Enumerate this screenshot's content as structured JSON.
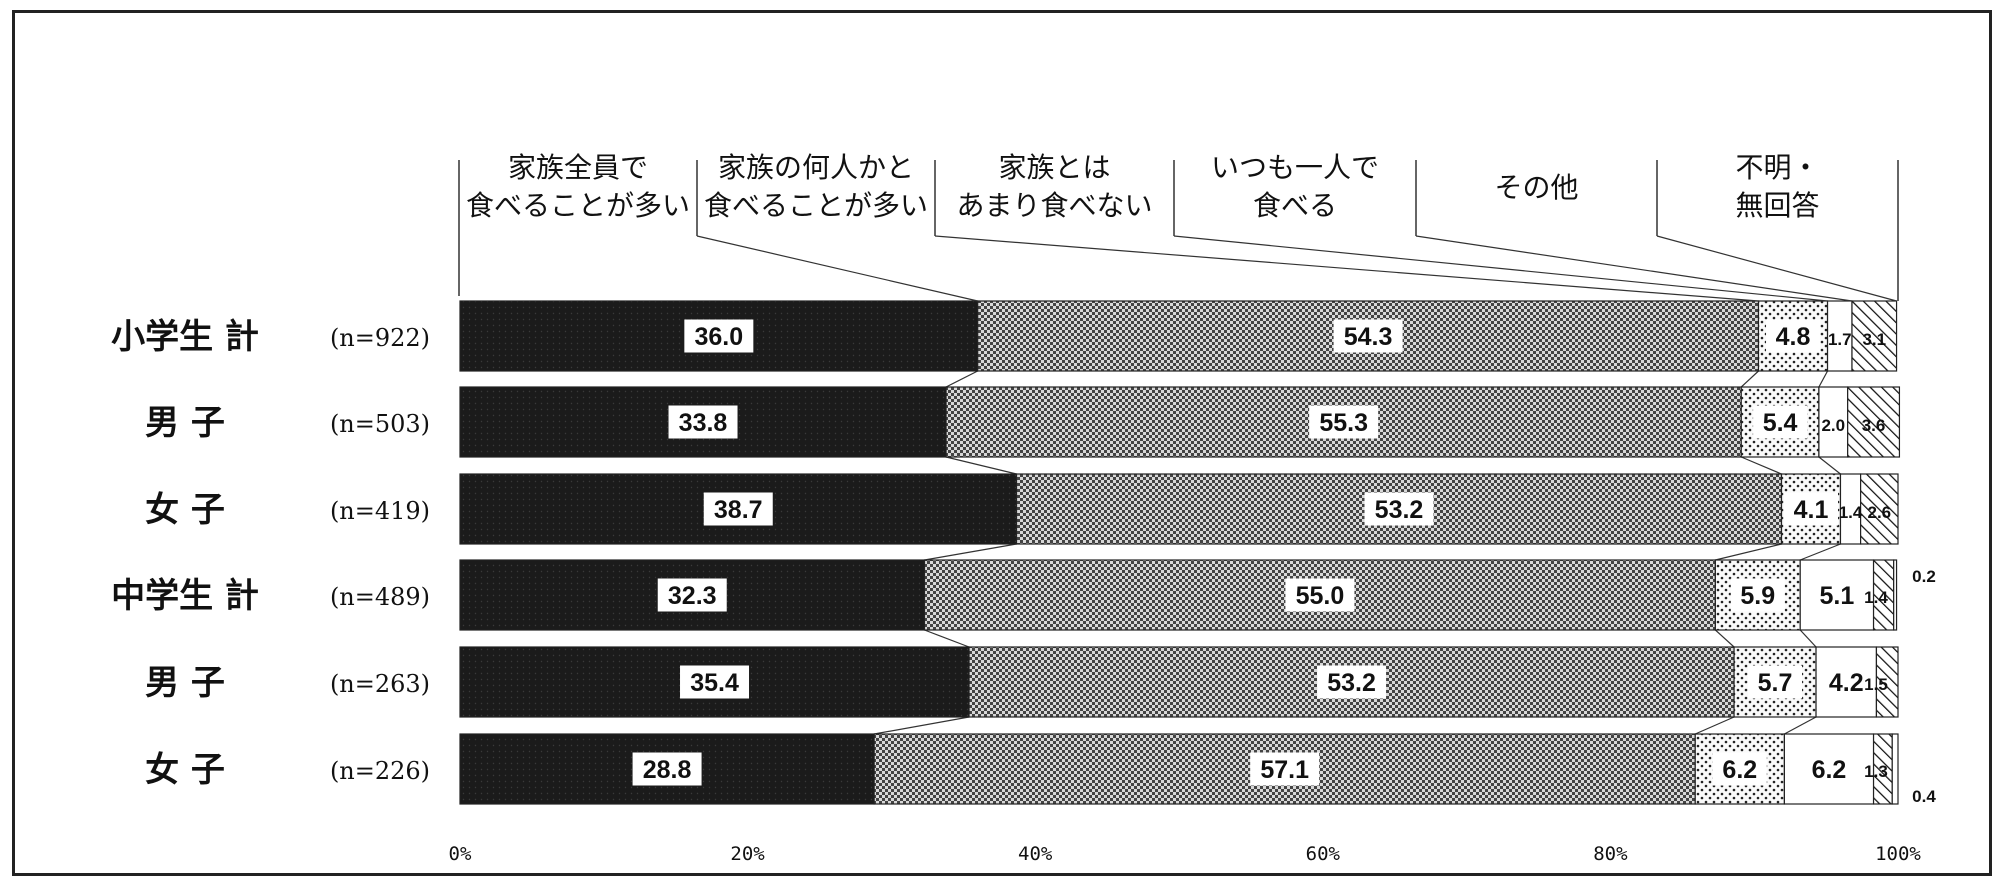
{
  "chart_data": {
    "type": "bar",
    "stacked": true,
    "orientation": "horizontal",
    "percent": true,
    "categories": [
      "小学生 計",
      "男 子",
      "女 子",
      "中学生 計",
      "男 子",
      "女 子"
    ],
    "n_labels": [
      "(n=922)",
      "(n=503)",
      "(n=419)",
      "(n=489)",
      "(n=263)",
      "(n=226)"
    ],
    "series": [
      {
        "name": "家族全員で\n食べることが多い",
        "values": [
          36.0,
          33.8,
          38.7,
          32.3,
          35.4,
          28.8
        ]
      },
      {
        "name": "家族の何人かと\n食べることが多い",
        "values": [
          54.3,
          55.3,
          53.2,
          55.0,
          53.2,
          57.1
        ]
      },
      {
        "name": "家族とは\nあまり食べない",
        "values": [
          4.8,
          5.4,
          4.1,
          5.9,
          5.7,
          6.2
        ]
      },
      {
        "name": "いつも一人で\n食べる",
        "values": [
          1.7,
          2.0,
          1.4,
          5.1,
          4.2,
          6.2
        ]
      },
      {
        "name": "その他",
        "values": [
          3.1,
          3.6,
          2.6,
          1.4,
          1.5,
          1.3
        ]
      },
      {
        "name": "不明・\n無回答",
        "values": [
          null,
          null,
          null,
          0.2,
          null,
          0.4
        ]
      }
    ],
    "x_ticks": [
      "0%",
      "20%",
      "40%",
      "60%",
      "80%",
      "100%"
    ],
    "xlim": [
      0,
      100
    ],
    "colors": {
      "s1": "#1a1a1a",
      "s2": "#8a8a8a",
      "s3": "#f2f2f2",
      "s4": "#ffffff",
      "s5": "#ffffff",
      "s6": "#ffffff"
    }
  }
}
